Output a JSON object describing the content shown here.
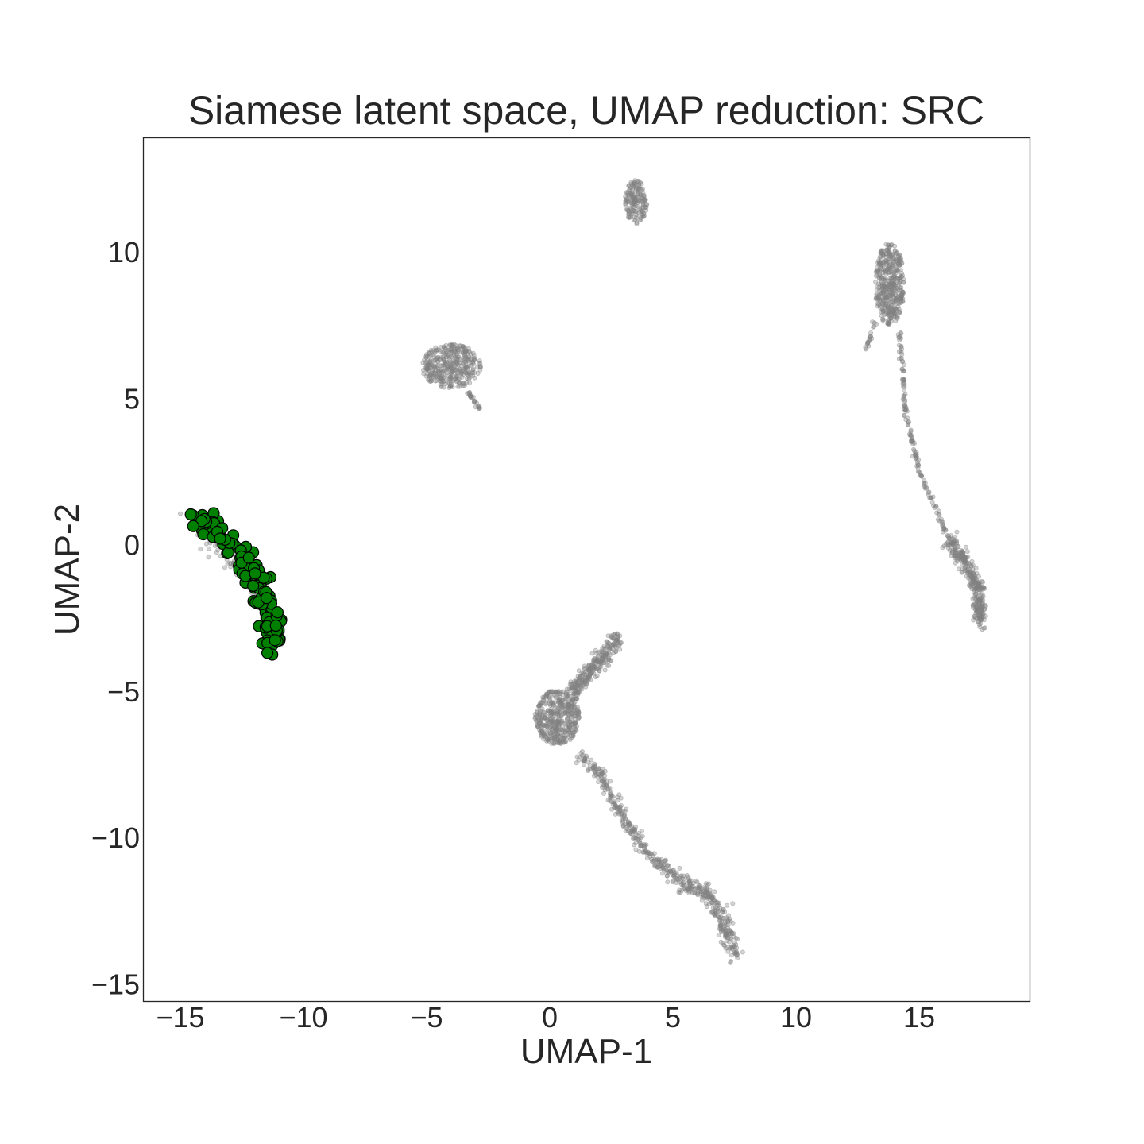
{
  "chart_data": {
    "type": "scatter",
    "title": "Siamese latent space, UMAP reduction: SRC",
    "xlabel": "UMAP-1",
    "ylabel": "UMAP-2",
    "xlim": [
      -16.5,
      19.5
    ],
    "ylim": [
      -15.6,
      13.9
    ],
    "xticks": [
      -15,
      -10,
      -5,
      0,
      5,
      10,
      15
    ],
    "yticks": [
      -15,
      -10,
      -5,
      0,
      5,
      10
    ],
    "xtick_labels": [
      "−15",
      "−10",
      "−5",
      "0",
      "5",
      "10",
      "15"
    ],
    "ytick_labels": [
      "−15",
      "−10",
      "−5",
      "0",
      "5",
      "10"
    ],
    "grid": false,
    "colors": {
      "background": "#808080",
      "highlight": "#008000",
      "highlight_edge": "#000000"
    },
    "series": [
      {
        "role": "background",
        "clusters": [
          {
            "shape": "polyline",
            "path": [
              [
                -14.6,
                1.0
              ],
              [
                -13.3,
                -0.2
              ],
              [
                -12.2,
                -1.2
              ],
              [
                -11.5,
                -2.0
              ],
              [
                -11.1,
                -3.2
              ]
            ],
            "spread": 0.35,
            "count": 140
          },
          {
            "shape": "blob",
            "center": [
              3.5,
              11.7
            ],
            "radius": [
              0.45,
              0.75
            ],
            "count": 160
          },
          {
            "shape": "blob",
            "center": [
              -4.0,
              6.1
            ],
            "radius": [
              1.2,
              0.75
            ],
            "count": 380
          },
          {
            "shape": "polyline",
            "path": [
              [
                -3.4,
                5.3
              ],
              [
                -2.8,
                4.6
              ]
            ],
            "spread": 0.08,
            "count": 25
          },
          {
            "shape": "blob",
            "center": [
              13.8,
              8.9
            ],
            "radius": [
              0.6,
              1.4
            ],
            "count": 420
          },
          {
            "shape": "polyline",
            "path": [
              [
                13.2,
                7.7
              ],
              [
                12.8,
                6.6
              ]
            ],
            "spread": 0.1,
            "count": 20
          },
          {
            "shape": "polyline",
            "path": [
              [
                14.2,
                7.2
              ],
              [
                14.5,
                4.2
              ],
              [
                15.0,
                2.5
              ],
              [
                15.7,
                1.2
              ],
              [
                16.2,
                0.2
              ]
            ],
            "spread": 0.08,
            "count": 150
          },
          {
            "shape": "polyline",
            "path": [
              [
                16.2,
                0.2
              ],
              [
                16.9,
                -0.6
              ],
              [
                17.4,
                -1.5
              ],
              [
                17.5,
                -2.7
              ]
            ],
            "spread": 0.28,
            "count": 320
          },
          {
            "shape": "blob",
            "center": [
              0.3,
              -5.9
            ],
            "radius": [
              0.9,
              0.95
            ],
            "count": 420
          },
          {
            "shape": "polyline",
            "path": [
              [
                0.8,
                -5.2
              ],
              [
                1.6,
                -4.4
              ],
              [
                2.3,
                -3.7
              ],
              [
                2.8,
                -3.1
              ]
            ],
            "spread": 0.3,
            "count": 260
          },
          {
            "shape": "polyline",
            "path": [
              [
                1.2,
                -7.2
              ],
              [
                2.0,
                -7.8
              ],
              [
                2.7,
                -8.9
              ],
              [
                3.6,
                -10.1
              ],
              [
                4.5,
                -11.0
              ]
            ],
            "spread": 0.22,
            "count": 230
          },
          {
            "shape": "polyline",
            "path": [
              [
                4.5,
                -11.0
              ],
              [
                5.6,
                -11.6
              ],
              [
                6.4,
                -11.9
              ],
              [
                6.9,
                -12.6
              ],
              [
                7.3,
                -13.5
              ],
              [
                7.6,
                -14.1
              ]
            ],
            "spread": 0.3,
            "count": 290
          }
        ]
      },
      {
        "role": "highlight",
        "clusters": [
          {
            "shape": "polyline",
            "path": [
              [
                -14.6,
                1.0
              ],
              [
                -13.6,
                0.5
              ],
              [
                -12.6,
                -0.3
              ],
              [
                -11.9,
                -1.2
              ],
              [
                -11.5,
                -2.0
              ],
              [
                -11.1,
                -3.4
              ]
            ],
            "spread": 0.42,
            "count": 130
          }
        ]
      }
    ]
  }
}
